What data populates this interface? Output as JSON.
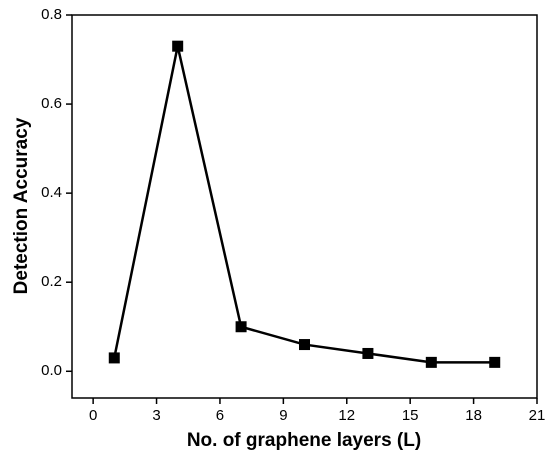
{
  "chart_data": {
    "type": "line",
    "x_label": "No. of graphene layers (L)",
    "y_label": "Detection Accuracy",
    "x": [
      1,
      4,
      7,
      10,
      13,
      16,
      19
    ],
    "series": [
      {
        "color": "#000000",
        "values": [
          0.03,
          0.73,
          0.1,
          0.06,
          0.04,
          0.02,
          0.02
        ]
      }
    ],
    "xlim": [
      -1,
      21
    ],
    "xticks": [
      0,
      3,
      6,
      9,
      12,
      15,
      18,
      21
    ],
    "ylim": [
      -0.06,
      0.8
    ],
    "yticks": [
      {
        "value": 0,
        "label": "0.0"
      },
      {
        "value": 0.2,
        "label": "0.2"
      },
      {
        "value": 0.4,
        "label": "0.4"
      },
      {
        "value": 0.6,
        "label": "0.6"
      },
      {
        "value": 0.8,
        "label": "0.8"
      }
    ]
  }
}
